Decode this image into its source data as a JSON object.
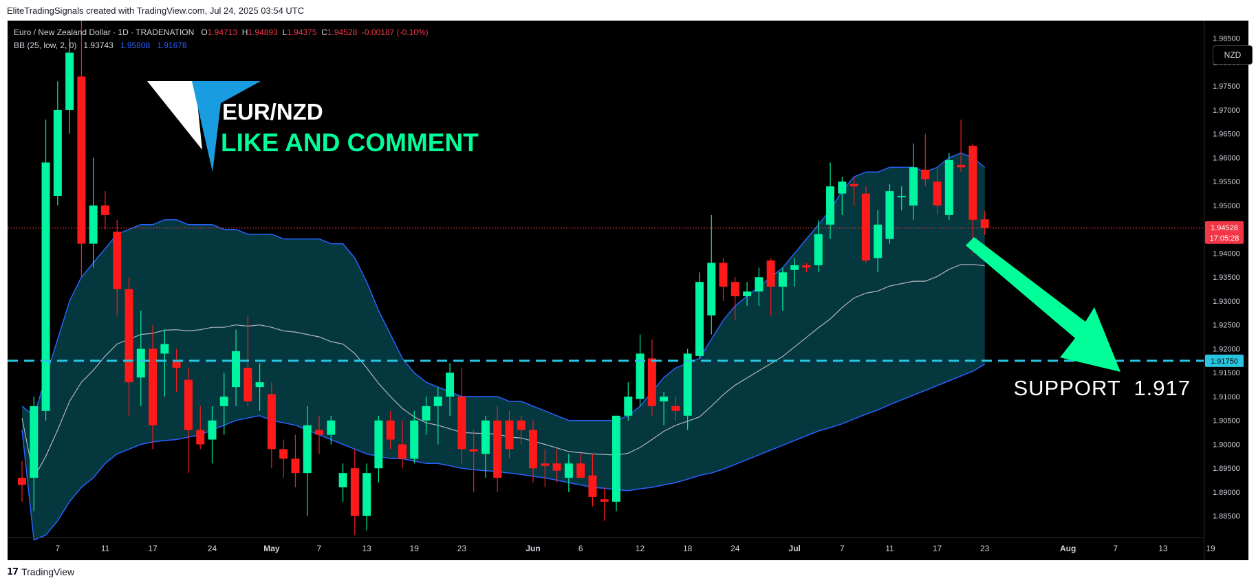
{
  "header": {
    "text": "EliteTradingSignals created with TradingView.com, Jul 24, 2025 03:54 UTC"
  },
  "footer": {
    "logo": "17",
    "brand": "TradingView"
  },
  "legend": {
    "symbol": "Euro / New Zealand Dollar · 1D · TRADENATION",
    "o_label": "O",
    "o_value": "1.94713",
    "h_label": "H",
    "h_value": "1.94893",
    "l_label": "L",
    "l_value": "1.94375",
    "c_label": "C",
    "c_value": "1.94528",
    "change": "-0.00187 (-0.10%)",
    "bb_label": "BB (25, low, 2, 0)",
    "bb_basis": "1.93743",
    "bb_upper": "1.95808",
    "bb_lower": "1.91678"
  },
  "currency_button": "NZD",
  "annotations": {
    "pair": "EUR/NZD",
    "cta": "LIKE AND COMMENT",
    "support_text": "SUPPORT  1.917"
  },
  "price_tags": {
    "last_price": "1.94528",
    "countdown": "17:05:28",
    "support_price": "1.91750"
  },
  "colors": {
    "up": "#00f5a0",
    "down": "#ff1a1a",
    "band_fill": "#053a42",
    "band_line": "#2962ff",
    "basis_line": "#b2b5be",
    "support_line": "#29c5e0",
    "accent_green": "#00ff99",
    "logo_blue": "#1a9de0",
    "price_tag_red": "#f23645"
  },
  "chart_data": {
    "type": "candlestick",
    "symbol": "Euro / New Zealand Dollar",
    "interval": "1D",
    "y_ticks": [
      1.985,
      1.98,
      1.975,
      1.97,
      1.965,
      1.96,
      1.955,
      1.95,
      1.945,
      1.94,
      1.935,
      1.93,
      1.925,
      1.92,
      1.915,
      1.91,
      1.905,
      1.9,
      1.895,
      1.89,
      1.885
    ],
    "y_tick_labels": [
      "1.98500",
      "1.98000",
      "1.97500",
      "1.97000",
      "1.96500",
      "1.96000",
      "1.95500",
      "1.95000",
      "1.94500",
      "1.94000",
      "1.93500",
      "1.93000",
      "1.92500",
      "1.92000",
      "1.91500",
      "1.91000",
      "1.90500",
      "1.90000",
      "1.89500",
      "1.89000",
      "1.88500"
    ],
    "ylim": [
      1.8805,
      1.9887
    ],
    "x_labels": [
      {
        "label": "7",
        "idx": 3,
        "bold": false
      },
      {
        "label": "11",
        "idx": 7,
        "bold": false
      },
      {
        "label": "17",
        "idx": 11,
        "bold": false
      },
      {
        "label": "24",
        "idx": 16,
        "bold": false
      },
      {
        "label": "May",
        "idx": 21,
        "bold": true
      },
      {
        "label": "7",
        "idx": 25,
        "bold": false
      },
      {
        "label": "13",
        "idx": 29,
        "bold": false
      },
      {
        "label": "19",
        "idx": 33,
        "bold": false
      },
      {
        "label": "23",
        "idx": 37,
        "bold": false
      },
      {
        "label": "Jun",
        "idx": 43,
        "bold": true
      },
      {
        "label": "6",
        "idx": 47,
        "bold": false
      },
      {
        "label": "12",
        "idx": 52,
        "bold": false
      },
      {
        "label": "18",
        "idx": 56,
        "bold": false
      },
      {
        "label": "24",
        "idx": 60,
        "bold": false
      },
      {
        "label": "Jul",
        "idx": 65,
        "bold": true
      },
      {
        "label": "7",
        "idx": 69,
        "bold": false
      },
      {
        "label": "11",
        "idx": 73,
        "bold": false
      },
      {
        "label": "17",
        "idx": 77,
        "bold": false
      },
      {
        "label": "23",
        "idx": 81,
        "bold": false
      },
      {
        "label": "Aug",
        "idx": 88,
        "bold": true
      },
      {
        "label": "7",
        "idx": 92,
        "bold": false
      },
      {
        "label": "13",
        "idx": 96,
        "bold": false
      },
      {
        "label": "19",
        "idx": 100,
        "bold": false
      }
    ],
    "candles": [
      {
        "o": 1.893,
        "h": 1.8965,
        "l": 1.888,
        "c": 1.8915
      },
      {
        "o": 1.893,
        "h": 1.91,
        "l": 1.886,
        "c": 1.908
      },
      {
        "o": 1.907,
        "h": 1.968,
        "l": 1.905,
        "c": 1.959
      },
      {
        "o": 1.952,
        "h": 1.976,
        "l": 1.95,
        "c": 1.97
      },
      {
        "o": 1.97,
        "h": 1.985,
        "l": 1.965,
        "c": 1.982
      },
      {
        "o": 1.977,
        "h": 1.991,
        "l": 1.935,
        "c": 1.942
      },
      {
        "o": 1.942,
        "h": 1.96,
        "l": 1.937,
        "c": 1.95
      },
      {
        "o": 1.95,
        "h": 1.953,
        "l": 1.945,
        "c": 1.948
      },
      {
        "o": 1.9445,
        "h": 1.947,
        "l": 1.927,
        "c": 1.9325
      },
      {
        "o": 1.9325,
        "h": 1.935,
        "l": 1.906,
        "c": 1.913
      },
      {
        "o": 1.914,
        "h": 1.928,
        "l": 1.908,
        "c": 1.92
      },
      {
        "o": 1.92,
        "h": 1.925,
        "l": 1.899,
        "c": 1.904
      },
      {
        "o": 1.919,
        "h": 1.924,
        "l": 1.91,
        "c": 1.921
      },
      {
        "o": 1.9175,
        "h": 1.92,
        "l": 1.911,
        "c": 1.916
      },
      {
        "o": 1.9135,
        "h": 1.916,
        "l": 1.894,
        "c": 1.903
      },
      {
        "o": 1.903,
        "h": 1.908,
        "l": 1.899,
        "c": 1.9
      },
      {
        "o": 1.901,
        "h": 1.908,
        "l": 1.896,
        "c": 1.905
      },
      {
        "o": 1.908,
        "h": 1.915,
        "l": 1.902,
        "c": 1.91
      },
      {
        "o": 1.912,
        "h": 1.924,
        "l": 1.908,
        "c": 1.9195
      },
      {
        "o": 1.916,
        "h": 1.927,
        "l": 1.908,
        "c": 1.909
      },
      {
        "o": 1.912,
        "h": 1.917,
        "l": 1.907,
        "c": 1.913
      },
      {
        "o": 1.9105,
        "h": 1.913,
        "l": 1.895,
        "c": 1.899
      },
      {
        "o": 1.899,
        "h": 1.901,
        "l": 1.893,
        "c": 1.897
      },
      {
        "o": 1.897,
        "h": 1.902,
        "l": 1.891,
        "c": 1.894
      },
      {
        "o": 1.894,
        "h": 1.908,
        "l": 1.885,
        "c": 1.904
      },
      {
        "o": 1.903,
        "h": 1.906,
        "l": 1.898,
        "c": 1.902
      },
      {
        "o": 1.902,
        "h": 1.906,
        "l": 1.9,
        "c": 1.905
      },
      {
        "o": 1.891,
        "h": 1.896,
        "l": 1.888,
        "c": 1.894
      },
      {
        "o": 1.895,
        "h": 1.899,
        "l": 1.881,
        "c": 1.885
      },
      {
        "o": 1.885,
        "h": 1.896,
        "l": 1.882,
        "c": 1.894
      },
      {
        "o": 1.895,
        "h": 1.906,
        "l": 1.892,
        "c": 1.905
      },
      {
        "o": 1.905,
        "h": 1.907,
        "l": 1.899,
        "c": 1.901
      },
      {
        "o": 1.9,
        "h": 1.905,
        "l": 1.895,
        "c": 1.897
      },
      {
        "o": 1.897,
        "h": 1.907,
        "l": 1.896,
        "c": 1.905
      },
      {
        "o": 1.905,
        "h": 1.91,
        "l": 1.902,
        "c": 1.908
      },
      {
        "o": 1.908,
        "h": 1.912,
        "l": 1.9,
        "c": 1.91
      },
      {
        "o": 1.91,
        "h": 1.917,
        "l": 1.906,
        "c": 1.915
      },
      {
        "o": 1.91,
        "h": 1.916,
        "l": 1.896,
        "c": 1.899
      },
      {
        "o": 1.899,
        "h": 1.903,
        "l": 1.89,
        "c": 1.8985
      },
      {
        "o": 1.898,
        "h": 1.906,
        "l": 1.893,
        "c": 1.905
      },
      {
        "o": 1.905,
        "h": 1.908,
        "l": 1.89,
        "c": 1.893
      },
      {
        "o": 1.905,
        "h": 1.907,
        "l": 1.897,
        "c": 1.899
      },
      {
        "o": 1.905,
        "h": 1.906,
        "l": 1.9,
        "c": 1.903
      },
      {
        "o": 1.903,
        "h": 1.905,
        "l": 1.892,
        "c": 1.895
      },
      {
        "o": 1.896,
        "h": 1.899,
        "l": 1.891,
        "c": 1.8955
      },
      {
        "o": 1.896,
        "h": 1.899,
        "l": 1.892,
        "c": 1.8945
      },
      {
        "o": 1.893,
        "h": 1.898,
        "l": 1.89,
        "c": 1.896
      },
      {
        "o": 1.896,
        "h": 1.898,
        "l": 1.893,
        "c": 1.893
      },
      {
        "o": 1.8935,
        "h": 1.898,
        "l": 1.887,
        "c": 1.889
      },
      {
        "o": 1.8885,
        "h": 1.891,
        "l": 1.884,
        "c": 1.888
      },
      {
        "o": 1.888,
        "h": 1.906,
        "l": 1.886,
        "c": 1.906
      },
      {
        "o": 1.906,
        "h": 1.913,
        "l": 1.905,
        "c": 1.91
      },
      {
        "o": 1.9095,
        "h": 1.923,
        "l": 1.908,
        "c": 1.919
      },
      {
        "o": 1.918,
        "h": 1.922,
        "l": 1.906,
        "c": 1.908
      },
      {
        "o": 1.909,
        "h": 1.911,
        "l": 1.904,
        "c": 1.91
      },
      {
        "o": 1.908,
        "h": 1.91,
        "l": 1.905,
        "c": 1.907
      },
      {
        "o": 1.906,
        "h": 1.92,
        "l": 1.903,
        "c": 1.919
      },
      {
        "o": 1.9185,
        "h": 1.936,
        "l": 1.918,
        "c": 1.934
      },
      {
        "o": 1.927,
        "h": 1.948,
        "l": 1.923,
        "c": 1.938
      },
      {
        "o": 1.938,
        "h": 1.939,
        "l": 1.93,
        "c": 1.933
      },
      {
        "o": 1.934,
        "h": 1.935,
        "l": 1.926,
        "c": 1.931
      },
      {
        "o": 1.931,
        "h": 1.934,
        "l": 1.929,
        "c": 1.932
      },
      {
        "o": 1.932,
        "h": 1.937,
        "l": 1.929,
        "c": 1.935
      },
      {
        "o": 1.9385,
        "h": 1.939,
        "l": 1.927,
        "c": 1.933
      },
      {
        "o": 1.933,
        "h": 1.937,
        "l": 1.928,
        "c": 1.936
      },
      {
        "o": 1.9365,
        "h": 1.939,
        "l": 1.933,
        "c": 1.9375
      },
      {
        "o": 1.9375,
        "h": 1.938,
        "l": 1.936,
        "c": 1.937
      },
      {
        "o": 1.9375,
        "h": 1.947,
        "l": 1.936,
        "c": 1.944
      },
      {
        "o": 1.946,
        "h": 1.959,
        "l": 1.943,
        "c": 1.954
      },
      {
        "o": 1.9525,
        "h": 1.956,
        "l": 1.948,
        "c": 1.955
      },
      {
        "o": 1.9545,
        "h": 1.956,
        "l": 1.95,
        "c": 1.954
      },
      {
        "o": 1.9525,
        "h": 1.954,
        "l": 1.938,
        "c": 1.9385
      },
      {
        "o": 1.939,
        "h": 1.949,
        "l": 1.936,
        "c": 1.946
      },
      {
        "o": 1.943,
        "h": 1.9545,
        "l": 1.942,
        "c": 1.953
      },
      {
        "o": 1.952,
        "h": 1.954,
        "l": 1.949,
        "c": 1.952
      },
      {
        "o": 1.95,
        "h": 1.963,
        "l": 1.947,
        "c": 1.958
      },
      {
        "o": 1.9575,
        "h": 1.965,
        "l": 1.954,
        "c": 1.9555
      },
      {
        "o": 1.955,
        "h": 1.958,
        "l": 1.948,
        "c": 1.95
      },
      {
        "o": 1.948,
        "h": 1.961,
        "l": 1.947,
        "c": 1.9595
      },
      {
        "o": 1.9585,
        "h": 1.968,
        "l": 1.957,
        "c": 1.958
      },
      {
        "o": 1.9625,
        "h": 1.963,
        "l": 1.94,
        "c": 1.947
      },
      {
        "o": 1.9471,
        "h": 1.9489,
        "l": 1.9438,
        "c": 1.9453
      }
    ],
    "bollinger": {
      "period": 25,
      "source": "low",
      "stddev": 2,
      "offset": 0,
      "upper": [
        1.908,
        1.906,
        1.914,
        1.922,
        1.93,
        1.935,
        1.938,
        1.941,
        1.944,
        1.945,
        1.946,
        1.946,
        1.947,
        1.947,
        1.946,
        1.946,
        1.946,
        1.945,
        1.945,
        1.944,
        1.944,
        1.944,
        1.943,
        1.943,
        1.943,
        1.943,
        1.942,
        1.942,
        1.939,
        1.934,
        1.928,
        1.923,
        1.918,
        1.915,
        1.913,
        1.912,
        1.911,
        1.91,
        1.91,
        1.91,
        1.91,
        1.909,
        1.909,
        1.908,
        1.907,
        1.906,
        1.905,
        1.905,
        1.905,
        1.905,
        1.905,
        1.906,
        1.908,
        1.911,
        1.914,
        1.916,
        1.917,
        1.918,
        1.922,
        1.926,
        1.929,
        1.931,
        1.933,
        1.935,
        1.937,
        1.94,
        1.943,
        1.946,
        1.949,
        1.953,
        1.956,
        1.957,
        1.957,
        1.958,
        1.958,
        1.958,
        1.957,
        1.958,
        1.96,
        1.961,
        1.96,
        1.958
      ],
      "lower": [
        1.903,
        1.88,
        1.881,
        1.884,
        1.888,
        1.891,
        1.893,
        1.896,
        1.898,
        1.899,
        1.9,
        1.9005,
        1.9008,
        1.901,
        1.9015,
        1.902,
        1.903,
        1.904,
        1.905,
        1.9055,
        1.906,
        1.905,
        1.9045,
        1.904,
        1.903,
        1.902,
        1.901,
        1.9,
        1.899,
        1.898,
        1.8975,
        1.897,
        1.897,
        1.8965,
        1.896,
        1.896,
        1.8955,
        1.895,
        1.8947,
        1.8945,
        1.8943,
        1.894,
        1.8937,
        1.8933,
        1.893,
        1.8925,
        1.892,
        1.8915,
        1.891,
        1.8908,
        1.8905,
        1.8903,
        1.8907,
        1.891,
        1.8915,
        1.892,
        1.8927,
        1.8935,
        1.894,
        1.8948,
        1.8958,
        1.8968,
        1.8978,
        1.8988,
        1.8998,
        1.9008,
        1.9018,
        1.9028,
        1.9035,
        1.9043,
        1.9053,
        1.9063,
        1.9072,
        1.9083,
        1.9093,
        1.9103,
        1.9113,
        1.9123,
        1.9133,
        1.9143,
        1.9153,
        1.9168
      ]
    },
    "support_level": 1.9175,
    "last_price": 1.94528
  }
}
